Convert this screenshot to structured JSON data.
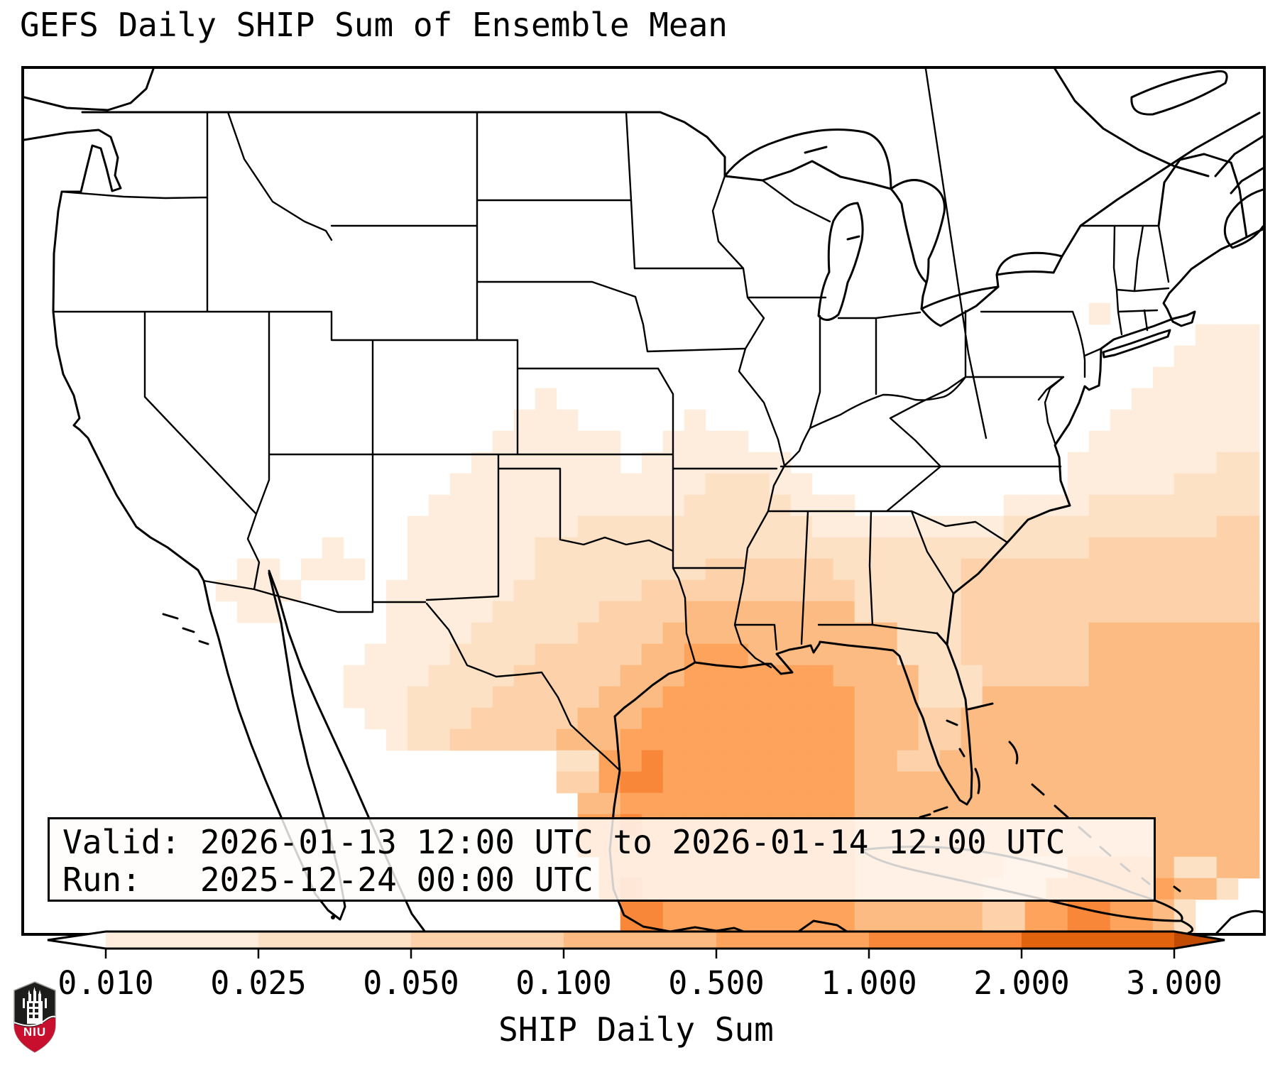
{
  "title": "GEFS Daily SHIP Sum of Ensemble Mean",
  "info_box": {
    "valid_line": "Valid: 2026-01-13 12:00 UTC to 2026-01-14 12:00 UTC",
    "run_line": "Run:   2025-12-24 00:00 UTC"
  },
  "colorbar": {
    "label": "SHIP Daily Sum",
    "ticks": [
      "0.010",
      "0.025",
      "0.050",
      "0.100",
      "0.500",
      "1.000",
      "2.000",
      "3.000"
    ],
    "tick_values": [
      0.01,
      0.025,
      0.05,
      0.1,
      0.5,
      1.0,
      2.0,
      3.0
    ],
    "under_color": "#ffffff",
    "segment_colors": [
      "#feeddc",
      "#fde1c4",
      "#fdd1a9",
      "#fdbb84",
      "#fda35b",
      "#f8873a",
      "#e2630e"
    ],
    "over_color": "#c24b03",
    "extend": "both"
  },
  "logo": {
    "text": "NIU",
    "shield_dark": "#1d1d1b",
    "shield_red": "#c8102e"
  },
  "chart_data": {
    "type": "heatmap",
    "title": "GEFS Daily SHIP Sum of Ensemble Mean",
    "colorbar_label": "SHIP Daily Sum",
    "levels": [
      0.01,
      0.025,
      0.05,
      0.1,
      0.5,
      1.0,
      2.0,
      3.0
    ],
    "palette": [
      "#feeddc",
      "#fde1c4",
      "#fdd1a9",
      "#fdbb84",
      "#fda35b",
      "#f8873a",
      "#e2630e"
    ],
    "cell_size": 30,
    "note": "grid of intensity levels 0-7 over CONUS/Gulf of Mexico; 0 = no value (white), 1-7 map to palette",
    "grid": [
      "0000000000000000000000000000000000000000000000000000000000",
      "0000000000000000000000000000000000000000000000000000000000",
      "0000000000000000000000000000000000000000000000000000000000",
      "0000000000000000000000000000000000000000000000000000000000",
      "0000000000000000000000000000000000000000000000000000000000",
      "0000000000000000000000000000000000000000000000000000000000",
      "0000000000000000000000000000000000000000000000000000000000",
      "0000000000000000000000000000000000000000000000000000000000",
      "0000000000000000000000000000000000000000000000000000000000",
      "0000000000000000000000000000000000000000000000000000000000",
      "0000000000000000000000000000000000000000000000000000000000",
      "0000000000000000000000000000000000000000000000000010000000",
      "0000000000000000000000000000000000000000000000000000000111",
      "0000000000000000000000000000000000000000000000000000001111",
      "0000000000000000000000000000000000000000000000000000011111",
      "0000000000000000000000001000000000000000000000000000111111",
      "0000000000000000000000011100000100000000000000000001111111",
      "0000000000000000000000111111001111000000000000000011111111",
      "0000000000000000000001111111011111110000000000000111111122",
      "0000000000000000000011111111111122211000000000000111112222",
      "0000000000000000000111111111111222221110000000111122222222",
      "0000000000000000001111111122222222222111111111222222222233",
      "0000000000000010001111112222222222222222222222222233333333",
      "0000000000110111001111112222222233333322222233333333333333",
      "0000000001111000011111122222233333333332222233333333333333",
      "0000000000110000011111222223333444444442222233333333333333",
      "0000000000000000011112222233334444444444422233333344444444",
      "0000000000000000111122223333344555444444422233333344444444",
      "0000000000000001111222233333444555555544442223333344444444",
      "0000000000000001112222333334445555555554442224444444444444",
      "0000000000000000112223333344455555555554443344444444444444",
      "0000000000000000012233333444555555555554443344444444444444",
      "0000000000000000000000000225565555555554433444444444444444",
      "0000000000000000000000000335665555555554444444444444444444",
      "0000000000000000000000000044555555555554444444444444444444",
      "0000000000000000000000000055655555555554444444444444444444",
      "0000000000000000000000000055555555555554444444444444444444",
      "0000000000000000000000000005555555555554444444333555542244",
      "0000000000000000000000000005655555555554444443335555554420",
      "0000000000000000000000000000665555555554444443355665542000"
    ]
  }
}
